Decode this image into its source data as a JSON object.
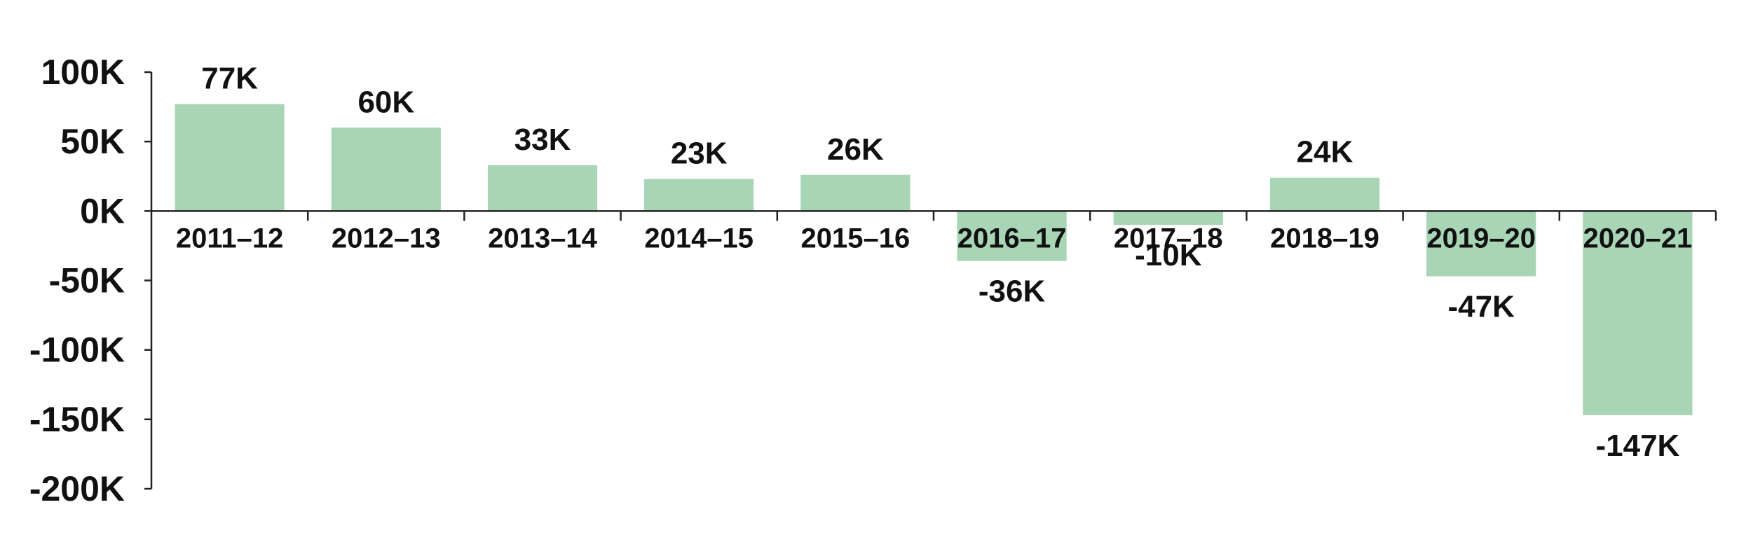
{
  "chart_data": {
    "type": "bar",
    "title": "",
    "xlabel": "",
    "ylabel": "",
    "ylim": [
      -200000,
      100000
    ],
    "y_ticks": [
      100000,
      50000,
      0,
      -50000,
      -100000,
      -150000,
      -200000
    ],
    "y_tick_labels": [
      "100K",
      "50K",
      "0K",
      "-50K",
      "-100K",
      "-150K",
      "-200K"
    ],
    "grid": false,
    "legend": "none",
    "bar_color": "#a8d5b5",
    "categories": [
      "2011–12",
      "2012–13",
      "2013–14",
      "2014–15",
      "2015–16",
      "2016–17",
      "2017–18",
      "2018–19",
      "2019–20",
      "2020–21"
    ],
    "values": [
      77000,
      60000,
      33000,
      23000,
      26000,
      -36000,
      -10000,
      24000,
      -47000,
      -147000
    ],
    "data_labels": [
      "77K",
      "60K",
      "33K",
      "23K",
      "26K",
      "-36K",
      "-10K",
      "24K",
      "-47K",
      "-147K"
    ]
  }
}
